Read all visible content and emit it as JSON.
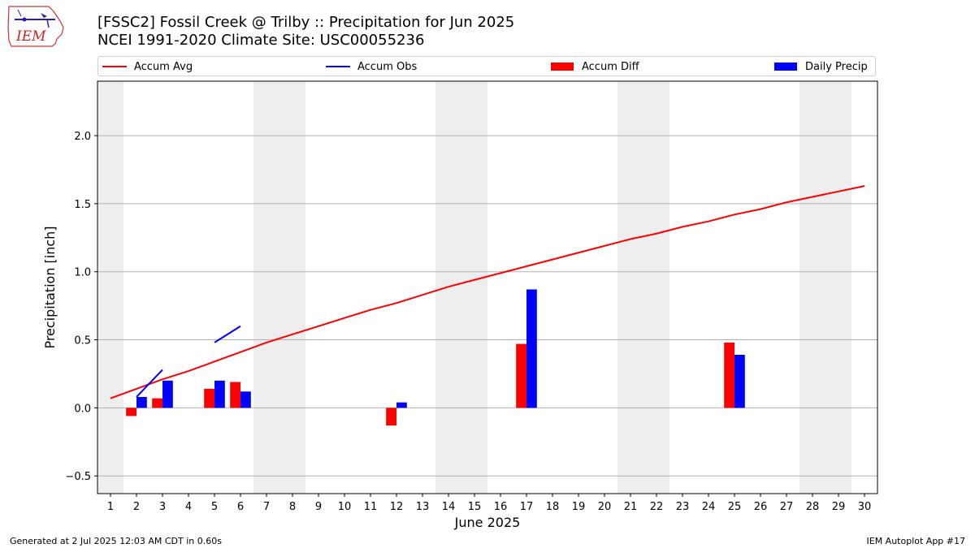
{
  "header": {
    "logo_text": "IEM",
    "title_line1": "[FSSC2] Fossil Creek @ Trilby :: Precipitation for Jun 2025",
    "title_line2": "NCEI 1991-2020 Climate Site: USC00055236"
  },
  "footer": {
    "left": "Generated at 2 Jul 2025 12:03 AM CDT in 0.60s",
    "right": "IEM Autoplot App #17"
  },
  "colors": {
    "accum_avg": "#ff0000",
    "accum_obs": "#0000ff",
    "accum_diff": "#ff0000",
    "daily_precip": "#0000ff",
    "weekend_shade": "#eeeeee",
    "grid": "#b0b0b0"
  },
  "chart_data": {
    "type": "bar",
    "xlabel": "June 2025",
    "ylabel": "Precipitation [inch]",
    "xlim": [
      0.5,
      30.5
    ],
    "ylim": [
      -0.63,
      2.4
    ],
    "yticks": [
      -0.5,
      0.0,
      0.5,
      1.0,
      1.5,
      2.0
    ],
    "ytick_labels": [
      "−0.5",
      "0.0",
      "0.5",
      "1.0",
      "1.5",
      "2.0"
    ],
    "grid": "horizontal",
    "legend_position": "top, above plot",
    "days": [
      1,
      2,
      3,
      4,
      5,
      6,
      7,
      8,
      9,
      10,
      11,
      12,
      13,
      14,
      15,
      16,
      17,
      18,
      19,
      20,
      21,
      22,
      23,
      24,
      25,
      26,
      27,
      28,
      29,
      30
    ],
    "weekend_days": [
      1,
      7,
      8,
      14,
      15,
      21,
      22,
      28,
      29
    ],
    "series": [
      {
        "name": "Accum Avg",
        "kind": "line",
        "x": [
          1,
          2,
          3,
          4,
          5,
          6,
          7,
          8,
          9,
          10,
          11,
          12,
          13,
          14,
          15,
          16,
          17,
          18,
          19,
          20,
          21,
          22,
          23,
          24,
          25,
          26,
          27,
          28,
          29,
          30
        ],
        "values": [
          0.07,
          0.14,
          0.21,
          0.27,
          0.34,
          0.41,
          0.48,
          0.54,
          0.6,
          0.66,
          0.72,
          0.77,
          0.83,
          0.89,
          0.94,
          0.99,
          1.04,
          1.09,
          1.14,
          1.19,
          1.24,
          1.28,
          1.33,
          1.37,
          1.42,
          1.46,
          1.51,
          1.55,
          1.59,
          1.63
        ]
      },
      {
        "name": "Accum Obs",
        "kind": "line",
        "x": [
          2,
          3,
          5,
          6
        ],
        "values": [
          0.08,
          0.28,
          0.48,
          0.6
        ]
      },
      {
        "name": "Accum Diff",
        "kind": "bar",
        "x": [
          2,
          3,
          5,
          6,
          12,
          17,
          25
        ],
        "values": [
          -0.06,
          0.07,
          0.14,
          0.19,
          -0.13,
          0.47,
          0.48
        ]
      },
      {
        "name": "Daily Precip",
        "kind": "bar",
        "x": [
          2,
          3,
          5,
          6,
          12,
          17,
          25
        ],
        "values": [
          0.08,
          0.2,
          0.2,
          0.12,
          0.04,
          0.87,
          0.39
        ]
      }
    ]
  }
}
